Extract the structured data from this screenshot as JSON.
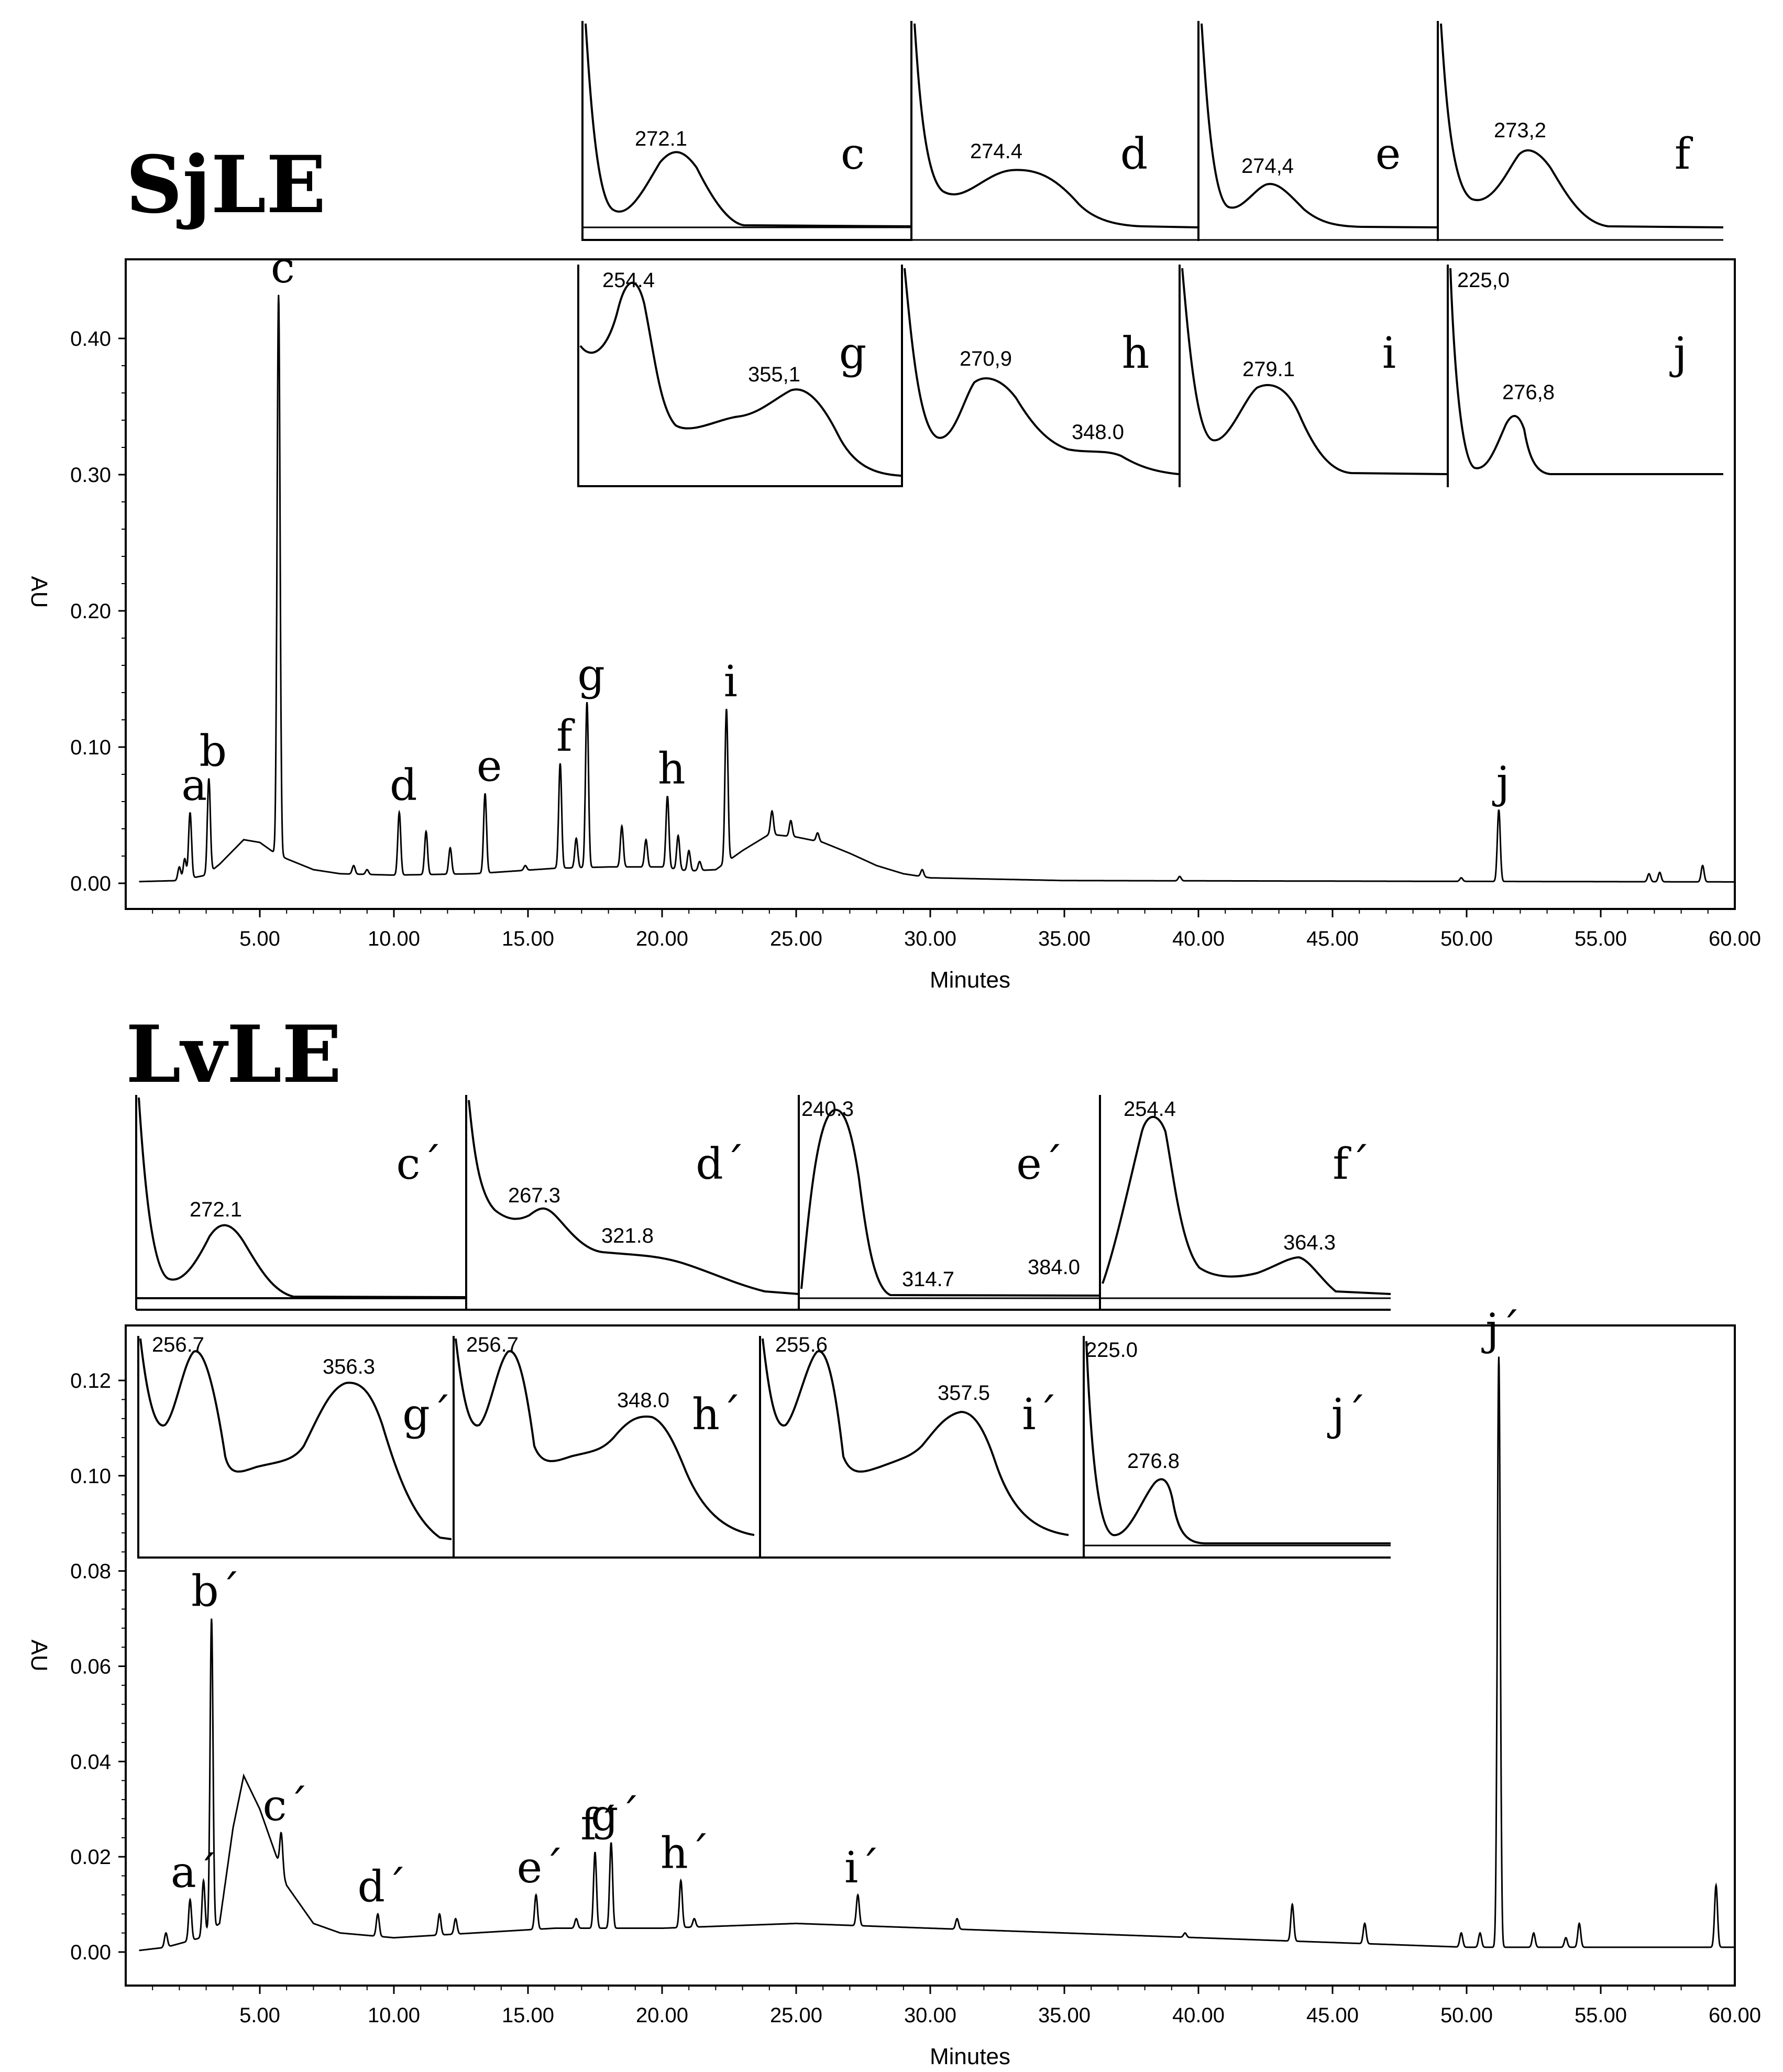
{
  "panels": [
    {
      "id": "sjle",
      "title": "SjLE",
      "xlabel": "Minutes",
      "ylabel": "AU",
      "xlim": [
        0,
        60
      ],
      "ylim": [
        0,
        0.45
      ],
      "yticks": [
        "0.00",
        "0.10",
        "0.20",
        "0.30",
        "0.40"
      ],
      "ytick_values": [
        0,
        0.1,
        0.2,
        0.3,
        0.4
      ],
      "xticks": [
        "5.00",
        "10.00",
        "15.00",
        "20.00",
        "25.00",
        "30.00",
        "35.00",
        "40.00",
        "45.00",
        "50.00",
        "55.00",
        "60.00"
      ],
      "xtick_values": [
        5,
        10,
        15,
        20,
        25,
        30,
        35,
        40,
        45,
        50,
        55,
        60
      ],
      "baseline": [
        [
          0,
          0.001
        ],
        [
          2.0,
          0.002
        ],
        [
          3.0,
          0.006
        ],
        [
          3.5,
          0.014
        ],
        [
          4.0,
          0.024
        ],
        [
          4.4,
          0.032
        ],
        [
          5.0,
          0.03
        ],
        [
          5.5,
          0.023
        ],
        [
          6.0,
          0.018
        ],
        [
          7.0,
          0.01
        ],
        [
          8.0,
          0.007
        ],
        [
          10.0,
          0.006
        ],
        [
          13.0,
          0.007
        ],
        [
          16.0,
          0.011
        ],
        [
          18.0,
          0.012
        ],
        [
          20.0,
          0.012
        ],
        [
          21.0,
          0.009
        ],
        [
          22.0,
          0.01
        ],
        [
          23.0,
          0.024
        ],
        [
          24.0,
          0.036
        ],
        [
          25.0,
          0.034
        ],
        [
          26.0,
          0.03
        ],
        [
          27.0,
          0.022
        ],
        [
          28.0,
          0.013
        ],
        [
          29.0,
          0.007
        ],
        [
          30.0,
          0.004
        ],
        [
          35.0,
          0.002
        ],
        [
          60.0,
          0.001
        ]
      ],
      "peaks": [
        {
          "label": "a",
          "t": 2.4,
          "h": 0.052
        },
        {
          "label": "b",
          "t": 3.1,
          "h": 0.077
        },
        {
          "label": "c",
          "t": 5.7,
          "h": 0.432
        },
        {
          "label": "d",
          "t": 10.2,
          "h": 0.052
        },
        {
          "label": "e",
          "t": 13.4,
          "h": 0.066
        },
        {
          "label": "f",
          "t": 16.2,
          "h": 0.088
        },
        {
          "label": "g",
          "t": 17.2,
          "h": 0.133
        },
        {
          "label": "h",
          "t": 20.2,
          "h": 0.064
        },
        {
          "label": "i",
          "t": 22.4,
          "h": 0.128
        },
        {
          "label": "j",
          "t": 51.2,
          "h": 0.054
        }
      ],
      "minor_peaks": [
        [
          2.0,
          0.012
        ],
        [
          2.2,
          0.018
        ],
        [
          6.7,
          0.012
        ],
        [
          8.5,
          0.013
        ],
        [
          9.0,
          0.01
        ],
        [
          11.2,
          0.038
        ],
        [
          12.1,
          0.026
        ],
        [
          14.9,
          0.013
        ],
        [
          16.8,
          0.033
        ],
        [
          18.5,
          0.042
        ],
        [
          19.4,
          0.032
        ],
        [
          20.6,
          0.035
        ],
        [
          21.0,
          0.024
        ],
        [
          21.4,
          0.016
        ],
        [
          23.5,
          0.026
        ],
        [
          24.1,
          0.053
        ],
        [
          24.8,
          0.046
        ],
        [
          25.8,
          0.037
        ],
        [
          29.7,
          0.01
        ],
        [
          39.3,
          0.005
        ],
        [
          49.8,
          0.004
        ],
        [
          56.8,
          0.007
        ],
        [
          57.2,
          0.008
        ],
        [
          58.8,
          0.013
        ]
      ],
      "uv_insets": [
        {
          "label": "c",
          "numbers": [
            "272.1"
          ]
        },
        {
          "label": "d",
          "numbers": [
            "274.4"
          ]
        },
        {
          "label": "e",
          "numbers": [
            "274,4"
          ]
        },
        {
          "label": "f",
          "numbers": [
            "273,2"
          ]
        },
        {
          "label": "g",
          "numbers": [
            "254.4",
            "355,1"
          ]
        },
        {
          "label": "h",
          "numbers": [
            "270,9",
            "348.0"
          ]
        },
        {
          "label": "i",
          "numbers": [
            "279.1"
          ]
        },
        {
          "label": "j",
          "numbers": [
            "225,0",
            "276,8"
          ]
        }
      ]
    },
    {
      "id": "lvle",
      "title": "LvLE",
      "xlabel": "Minutes",
      "ylabel": "AU",
      "xlim": [
        0,
        60
      ],
      "ylim": [
        -0.006,
        0.13
      ],
      "yticks": [
        "0.00",
        "0.02",
        "0.04",
        "0.06",
        "0.08",
        "0.10",
        "0.12"
      ],
      "ytick_values": [
        0,
        0.02,
        0.04,
        0.06,
        0.08,
        0.1,
        0.12
      ],
      "xticks": [
        "5.00",
        "10.00",
        "15.00",
        "20.00",
        "25.00",
        "30.00",
        "35.00",
        "40.00",
        "45.00",
        "50.00",
        "55.00",
        "60.00"
      ],
      "xtick_values": [
        5,
        10,
        15,
        20,
        25,
        30,
        35,
        40,
        45,
        50,
        55,
        60
      ],
      "baseline": [
        [
          0,
          0.0
        ],
        [
          1.5,
          0.001
        ],
        [
          2.8,
          0.003
        ],
        [
          3.5,
          0.006
        ],
        [
          4.0,
          0.026
        ],
        [
          4.4,
          0.037
        ],
        [
          5.0,
          0.03
        ],
        [
          5.5,
          0.022
        ],
        [
          6.0,
          0.014
        ],
        [
          7.0,
          0.006
        ],
        [
          8.0,
          0.004
        ],
        [
          10.0,
          0.003
        ],
        [
          13.0,
          0.004
        ],
        [
          16.0,
          0.005
        ],
        [
          20.0,
          0.005
        ],
        [
          25.0,
          0.006
        ],
        [
          30.0,
          0.005
        ],
        [
          40.0,
          0.003
        ],
        [
          50.0,
          0.001
        ],
        [
          52.0,
          0.001
        ],
        [
          60.0,
          0.001
        ]
      ],
      "peaks": [
        {
          "label": "a´",
          "t": 2.4,
          "h": 0.011
        },
        {
          "label": "b´",
          "t": 3.2,
          "h": 0.07
        },
        {
          "label": "c´",
          "t": 5.8,
          "h": 0.025
        },
        {
          "label": "d´",
          "t": 9.4,
          "h": 0.008
        },
        {
          "label": "e´",
          "t": 15.3,
          "h": 0.012
        },
        {
          "label": "f´",
          "t": 17.5,
          "h": 0.021
        },
        {
          "label": "g´",
          "t": 18.1,
          "h": 0.023
        },
        {
          "label": "h´",
          "t": 20.7,
          "h": 0.015
        },
        {
          "label": "i´",
          "t": 27.3,
          "h": 0.012
        },
        {
          "label": "j´",
          "t": 51.2,
          "h": 0.125
        }
      ],
      "minor_peaks": [
        [
          1.5,
          0.004
        ],
        [
          2.9,
          0.015
        ],
        [
          11.7,
          0.008
        ],
        [
          12.3,
          0.007
        ],
        [
          16.8,
          0.007
        ],
        [
          21.2,
          0.007
        ],
        [
          31.0,
          0.007
        ],
        [
          39.5,
          0.004
        ],
        [
          43.5,
          0.01
        ],
        [
          46.2,
          0.006
        ],
        [
          49.8,
          0.004
        ],
        [
          50.5,
          0.004
        ],
        [
          52.5,
          0.004
        ],
        [
          53.7,
          0.003
        ],
        [
          54.2,
          0.006
        ],
        [
          59.3,
          0.014
        ]
      ],
      "uv_insets": [
        {
          "label": "c´",
          "numbers": [
            "272.1"
          ]
        },
        {
          "label": "d´",
          "numbers": [
            "267.3",
            "321.8"
          ]
        },
        {
          "label": "e´",
          "numbers": [
            "240.3",
            "314.7",
            "384.0"
          ]
        },
        {
          "label": "f´",
          "numbers": [
            "254.4",
            "364.3"
          ]
        },
        {
          "label": "g´",
          "numbers": [
            "256.7",
            "356.3"
          ]
        },
        {
          "label": "h´",
          "numbers": [
            "256.7",
            "348.0"
          ]
        },
        {
          "label": "i´",
          "numbers": [
            "255.6",
            "357.5"
          ]
        },
        {
          "label": "j´",
          "numbers": [
            "225.0",
            "276.8"
          ]
        }
      ]
    }
  ],
  "chart_data": [
    {
      "type": "line",
      "title": "SjLE",
      "xlabel": "Minutes",
      "ylabel": "AU",
      "xlim": [
        0,
        60
      ],
      "ylim": [
        0,
        0.45
      ],
      "peaks": [
        {
          "label": "a",
          "retention_time": 2.4,
          "au": 0.052
        },
        {
          "label": "b",
          "retention_time": 3.1,
          "au": 0.077
        },
        {
          "label": "c",
          "retention_time": 5.7,
          "au": 0.432
        },
        {
          "label": "d",
          "retention_time": 10.2,
          "au": 0.052
        },
        {
          "label": "e",
          "retention_time": 13.4,
          "au": 0.066
        },
        {
          "label": "f",
          "retention_time": 16.2,
          "au": 0.088
        },
        {
          "label": "g",
          "retention_time": 17.2,
          "au": 0.133
        },
        {
          "label": "h",
          "retention_time": 20.2,
          "au": 0.064
        },
        {
          "label": "i",
          "retention_time": 22.4,
          "au": 0.128
        },
        {
          "label": "j",
          "retention_time": 51.2,
          "au": 0.054
        }
      ],
      "uv_spectra_maxima": {
        "c": [
          "272.1"
        ],
        "d": [
          "274.4"
        ],
        "e": [
          "274,4"
        ],
        "f": [
          "273,2"
        ],
        "g": [
          "254.4",
          "355,1"
        ],
        "h": [
          "270,9",
          "348.0"
        ],
        "i": [
          "279.1"
        ],
        "j": [
          "225,0",
          "276,8"
        ]
      }
    },
    {
      "type": "line",
      "title": "LvLE",
      "xlabel": "Minutes",
      "ylabel": "AU",
      "xlim": [
        0,
        60
      ],
      "ylim": [
        -0.006,
        0.13
      ],
      "peaks": [
        {
          "label": "a´",
          "retention_time": 2.4,
          "au": 0.011
        },
        {
          "label": "b´",
          "retention_time": 3.2,
          "au": 0.07
        },
        {
          "label": "c´",
          "retention_time": 5.8,
          "au": 0.025
        },
        {
          "label": "d´",
          "retention_time": 9.4,
          "au": 0.008
        },
        {
          "label": "e´",
          "retention_time": 15.3,
          "au": 0.012
        },
        {
          "label": "f´",
          "retention_time": 17.5,
          "au": 0.021
        },
        {
          "label": "g´",
          "retention_time": 18.1,
          "au": 0.023
        },
        {
          "label": "h´",
          "retention_time": 20.7,
          "au": 0.015
        },
        {
          "label": "i´",
          "retention_time": 27.3,
          "au": 0.012
        },
        {
          "label": "j´",
          "retention_time": 51.2,
          "au": 0.125
        }
      ],
      "uv_spectra_maxima": {
        "c´": [
          "272.1"
        ],
        "d´": [
          "267.3",
          "321.8"
        ],
        "e´": [
          "240.3",
          "314.7",
          "384.0"
        ],
        "f´": [
          "254.4",
          "364.3"
        ],
        "g´": [
          "256.7",
          "356.3"
        ],
        "h´": [
          "256.7",
          "348.0"
        ],
        "i´": [
          "255.6",
          "357.5"
        ],
        "j´": [
          "225.0",
          "276.8"
        ]
      }
    }
  ]
}
